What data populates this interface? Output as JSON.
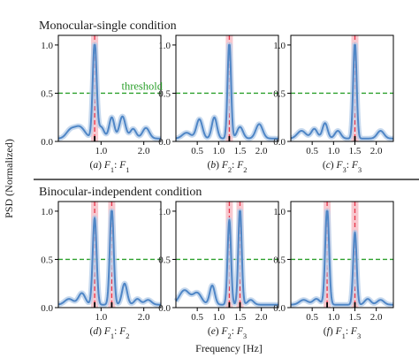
{
  "sections": [
    "Monocular-single condition",
    "Binocular-independent condition"
  ],
  "ylabel": "PSD (Normalized)",
  "xlabel": "Frequency [Hz]",
  "threshold_label": "threshold",
  "colors": {
    "psd": "#4f86c6",
    "psd_band": "#b9d0ea",
    "marker": "#e8354a",
    "marker_band": "#f5b6bf",
    "threshold": "#2ca02c"
  },
  "chart_data": [
    {
      "type": "line",
      "caption": "(a) F1:F1",
      "xlim": [
        0,
        2.4
      ],
      "ylim": [
        0,
        1.1
      ],
      "xticks": [
        1.0,
        2.0
      ],
      "yticks": [
        0.0,
        0.5,
        1.0
      ],
      "threshold": 0.5,
      "markers": [
        0.85
      ],
      "peaks": [
        [
          0.28,
          0.08,
          0.1
        ],
        [
          0.5,
          0.12,
          0.12
        ],
        [
          0.85,
          1.0,
          0.045
        ],
        [
          1.0,
          0.12,
          0.07
        ],
        [
          1.25,
          0.22,
          0.06
        ],
        [
          1.5,
          0.23,
          0.07
        ],
        [
          1.75,
          0.1,
          0.07
        ],
        [
          2.05,
          0.11,
          0.08
        ]
      ]
    },
    {
      "type": "line",
      "caption": "(b) F2:F2",
      "xlim": [
        0,
        2.4
      ],
      "ylim": [
        0,
        1.1
      ],
      "xticks": [
        0.5,
        1.0,
        1.5,
        2.0
      ],
      "yticks": [
        0.0,
        0.5,
        1.0
      ],
      "threshold": 0.5,
      "markers": [
        1.25
      ],
      "peaks": [
        [
          0.25,
          0.06,
          0.1
        ],
        [
          0.55,
          0.2,
          0.07
        ],
        [
          0.9,
          0.22,
          0.06
        ],
        [
          1.25,
          1.0,
          0.04
        ],
        [
          1.5,
          0.12,
          0.07
        ],
        [
          1.95,
          0.15,
          0.08
        ]
      ]
    },
    {
      "type": "line",
      "caption": "(c) F3:F3",
      "xlim": [
        0,
        2.4
      ],
      "ylim": [
        0,
        1.1
      ],
      "xticks": [
        0.5,
        1.0,
        1.5,
        2.0
      ],
      "yticks": [
        0.0,
        0.5,
        1.0
      ],
      "threshold": 0.5,
      "markers": [
        1.5
      ],
      "peaks": [
        [
          0.25,
          0.08,
          0.1
        ],
        [
          0.55,
          0.1,
          0.07
        ],
        [
          0.8,
          0.16,
          0.06
        ],
        [
          1.1,
          0.08,
          0.07
        ],
        [
          1.5,
          1.0,
          0.04
        ],
        [
          2.1,
          0.08,
          0.08
        ]
      ]
    },
    {
      "type": "line",
      "caption": "(d) F1:F2",
      "xlim": [
        0,
        2.4
      ],
      "ylim": [
        0,
        1.1
      ],
      "xticks": [
        1.0,
        2.0
      ],
      "yticks": [
        0.0,
        0.5,
        1.0
      ],
      "threshold": 0.5,
      "markers": [
        0.85,
        1.25
      ],
      "peaks": [
        [
          0.25,
          0.06,
          0.1
        ],
        [
          0.55,
          0.12,
          0.08
        ],
        [
          0.85,
          0.9,
          0.045
        ],
        [
          1.25,
          1.0,
          0.045
        ],
        [
          1.55,
          0.22,
          0.06
        ],
        [
          1.85,
          0.06,
          0.07
        ],
        [
          2.1,
          0.05,
          0.08
        ]
      ]
    },
    {
      "type": "line",
      "caption": "(e) F2:F3",
      "xlim": [
        0,
        2.4
      ],
      "ylim": [
        0,
        1.1
      ],
      "xticks": [
        0.5,
        1.0,
        1.5,
        2.0
      ],
      "yticks": [
        0.0,
        0.5,
        1.0
      ],
      "threshold": 0.5,
      "markers": [
        1.25,
        1.5
      ],
      "peaks": [
        [
          0.2,
          0.15,
          0.12
        ],
        [
          0.5,
          0.12,
          0.1
        ],
        [
          0.85,
          0.2,
          0.06
        ],
        [
          1.25,
          0.88,
          0.04
        ],
        [
          1.5,
          1.0,
          0.04
        ],
        [
          1.75,
          0.05,
          0.07
        ]
      ]
    },
    {
      "type": "line",
      "caption": "(f) F1:F3",
      "xlim": [
        0,
        2.4
      ],
      "ylim": [
        0,
        1.1
      ],
      "xticks": [
        0.5,
        1.0,
        1.5,
        2.0
      ],
      "yticks": [
        0.0,
        0.5,
        1.0
      ],
      "threshold": 0.5,
      "markers": [
        0.85,
        1.5
      ],
      "peaks": [
        [
          0.3,
          0.05,
          0.1
        ],
        [
          0.6,
          0.06,
          0.08
        ],
        [
          0.85,
          1.0,
          0.045
        ],
        [
          1.5,
          0.75,
          0.04
        ],
        [
          1.8,
          0.06,
          0.07
        ],
        [
          2.1,
          0.05,
          0.08
        ]
      ]
    }
  ]
}
